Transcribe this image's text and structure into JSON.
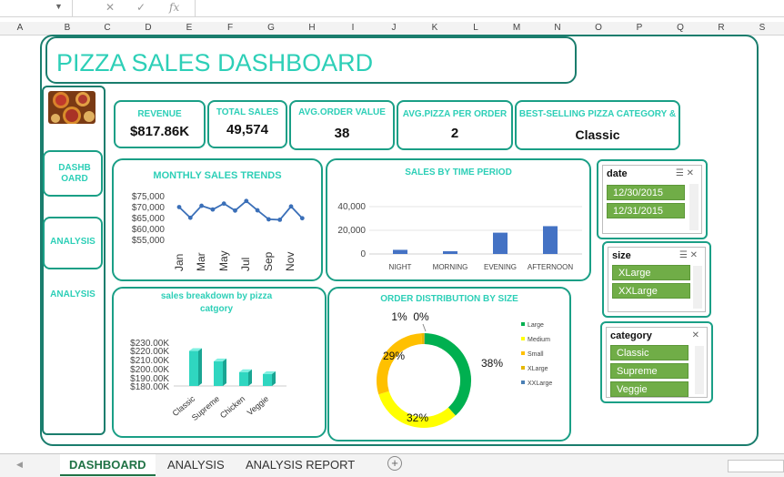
{
  "columns": [
    "A",
    "B",
    "C",
    "D",
    "E",
    "F",
    "G",
    "H",
    "I",
    "J",
    "K",
    "L",
    "M",
    "N",
    "O",
    "P",
    "Q",
    "R",
    "S"
  ],
  "dashboard_title": "PIZZA SALES DASHBOARD",
  "nav": [
    "DASHB OARD",
    "ANALYSIS",
    "ANALYSIS"
  ],
  "kpis": [
    {
      "label": "REVENUE",
      "value": "$817.86K"
    },
    {
      "label": "TOTAL SALES",
      "value": "49,574"
    },
    {
      "label": "AVG.ORDER VALUE",
      "value": "38"
    },
    {
      "label": "AVG.PIZZA PER ORDER",
      "value": "2"
    },
    {
      "label": "BEST-SELLING PIZZA CATEGORY &",
      "value": "Classic"
    }
  ],
  "monthly": {
    "title": "MONTHLY SALES TRENDS",
    "y_ticks": [
      "$75,000",
      "$70,000",
      "$65,000",
      "$60,000",
      "$55,000"
    ],
    "x_ticks": [
      "Jan",
      "Mar",
      "May",
      "Jul",
      "Sep",
      "Nov"
    ],
    "color": "#3a6fb8"
  },
  "time_period": {
    "title": "SALES  BY TIME PERIOD",
    "y_ticks": [
      "40,000",
      "20,000",
      "0"
    ],
    "categories": [
      "NIGHT",
      "MORNING",
      "EVENING",
      "AFTERNOON"
    ],
    "color": "#4472c4"
  },
  "breakdown": {
    "title": "sales breakdown by pizza catgory",
    "y_ticks": [
      "$230.00K",
      "$220.00K",
      "$210.00K",
      "$200.00K",
      "$190.00K",
      "$180.00K"
    ],
    "categories": [
      "Classic",
      "Supreme",
      "Chicken",
      "Veggie"
    ],
    "color": "#2fd6c0"
  },
  "size_dist": {
    "title": "ORDER DISTRIBUTION BY SIZE",
    "legend": [
      "Large",
      "Medium",
      "Small",
      "XLarge",
      "XXLarge"
    ],
    "labels": [
      "38%",
      "32%",
      "29%",
      "1%",
      "0%"
    ],
    "colors": [
      "#00b050",
      "#ffff00",
      "#ffc000",
      "#e6b800",
      "#4a7fb5"
    ]
  },
  "slicers": {
    "date": {
      "title": "date",
      "items": [
        "12/30/2015",
        "12/31/2015"
      ]
    },
    "size": {
      "title": "size",
      "items": [
        "XLarge",
        "XXLarge"
      ]
    },
    "category": {
      "title": "category",
      "items": [
        "Classic",
        "Supreme",
        "Veggie"
      ]
    }
  },
  "chart_data": [
    {
      "type": "line",
      "title": "MONTHLY SALES TRENDS",
      "categories": [
        "Jan",
        "Feb",
        "Mar",
        "Apr",
        "May",
        "Jun",
        "Jul",
        "Aug",
        "Sep",
        "Oct",
        "Nov",
        "Dec"
      ],
      "values": [
        69800,
        64900,
        70400,
        68700,
        71400,
        68200,
        72600,
        68300,
        64200,
        64000,
        70100,
        64700
      ],
      "ylim": [
        55000,
        75000
      ]
    },
    {
      "type": "bar",
      "title": "SALES  BY TIME PERIOD",
      "categories": [
        "NIGHT",
        "MORNING",
        "EVENING",
        "AFTERNOON"
      ],
      "values": [
        3500,
        2300,
        18000,
        23500
      ],
      "ylim": [
        0,
        40000
      ]
    },
    {
      "type": "bar",
      "title": "sales breakdown by pizza catgory",
      "categories": [
        "Classic",
        "Supreme",
        "Chicken",
        "Veggie"
      ],
      "values": [
        220.05,
        208.2,
        195.9,
        193.7
      ],
      "ylim": [
        180,
        230
      ]
    },
    {
      "type": "pie",
      "title": "ORDER DISTRIBUTION BY SIZE",
      "categories": [
        "Large",
        "Medium",
        "Small",
        "XLarge",
        "XXLarge"
      ],
      "values": [
        38,
        32,
        29,
        1,
        0.1
      ]
    }
  ],
  "tabs": [
    "DASHBOARD",
    "ANALYSIS",
    "ANALYSIS REPORT"
  ],
  "formula_icons": [
    "cancel-icon",
    "enter-icon",
    "function-icon"
  ]
}
